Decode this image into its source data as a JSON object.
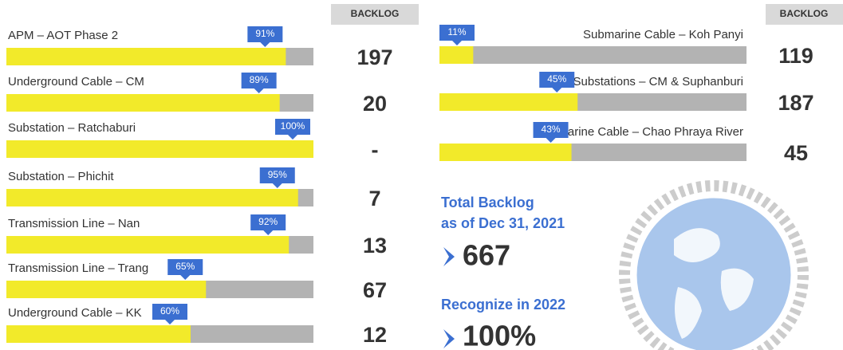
{
  "left": {
    "header": "BACKLOG",
    "projects": [
      {
        "name": "APM – AOT Phase 2",
        "progress": 91,
        "progress_label": "91%",
        "backlog": 197
      },
      {
        "name": "Underground Cable – CM",
        "progress": 89,
        "progress_label": "89%",
        "backlog": 20
      },
      {
        "name": "Substation – Ratchaburi",
        "progress": 100,
        "progress_label": "100%",
        "backlog": "-"
      },
      {
        "name": "Substation – Phichit",
        "progress": 95,
        "progress_label": "95%",
        "backlog": 7
      },
      {
        "name": "Transmission Line – Nan",
        "progress": 92,
        "progress_label": "92%",
        "backlog": 13
      },
      {
        "name": "Transmission Line – Trang",
        "progress": 65,
        "progress_label": "65%",
        "backlog": 67
      },
      {
        "name": "Underground Cable – KK",
        "progress": 60,
        "progress_label": "60%",
        "backlog": 12
      }
    ]
  },
  "right": {
    "header": "BACKLOG",
    "projects": [
      {
        "name": "Submarine Cable – Koh Panyi",
        "progress": 11,
        "progress_label": "11%",
        "backlog": 119
      },
      {
        "name": "2 Substations – CM &  Suphanburi",
        "progress": 45,
        "progress_label": "45%",
        "backlog": 187
      },
      {
        "name": "Submarine Cable – Chao Phraya River",
        "progress": 43,
        "progress_label": "43%",
        "backlog": 45
      }
    ]
  },
  "summary": {
    "title_line1": "Total Backlog",
    "title_line2": "as of Dec 31, 2021",
    "total": 667,
    "recognize_title": "Recognize in 2022",
    "recognize": "100%"
  }
}
